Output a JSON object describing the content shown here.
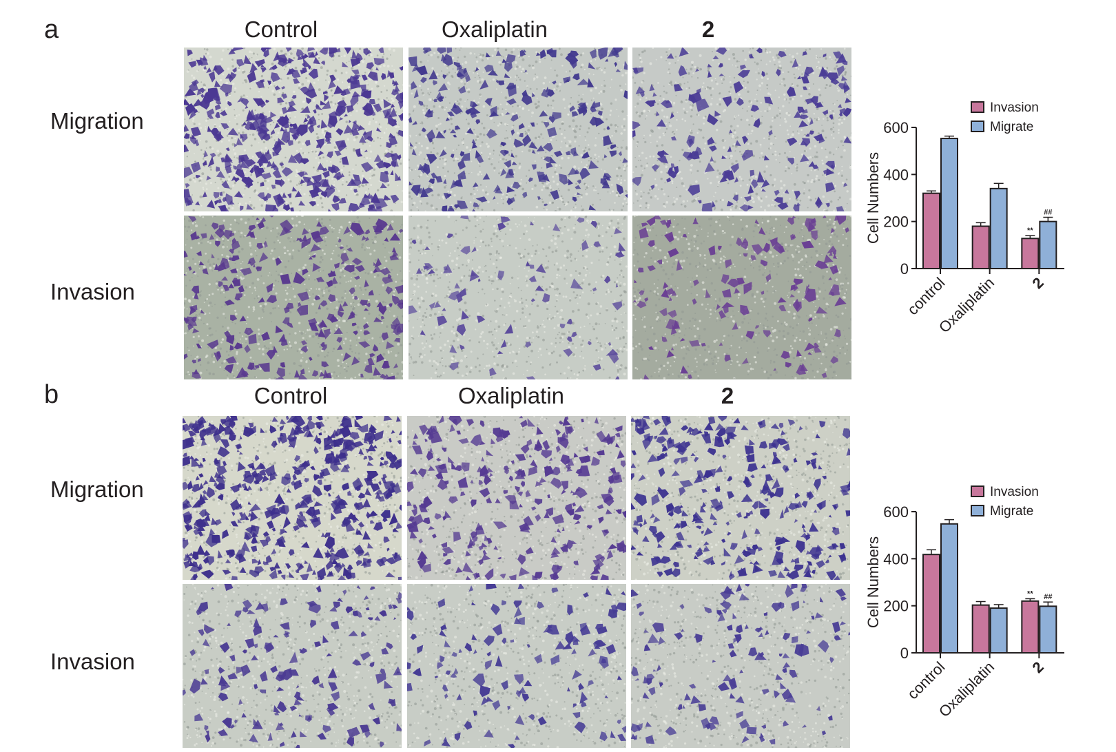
{
  "panels": [
    {
      "letter": "a",
      "columns": [
        "Control",
        "Oxaliplatin",
        "2"
      ],
      "rows": [
        "Migration",
        "Invasion"
      ],
      "micrographs": [
        {
          "density": 0.85,
          "bg": "#d4d8cf",
          "cell": "#4b3893"
        },
        {
          "density": 0.45,
          "bg": "#c5cac6",
          "cell": "#433a8f"
        },
        {
          "density": 0.32,
          "bg": "#c6cac7",
          "cell": "#4a3c96"
        },
        {
          "density": 0.48,
          "bg": "#a9b2a4",
          "cell": "#5a3a8f"
        },
        {
          "density": 0.14,
          "bg": "#c7cdc6",
          "cell": "#5b4a9c"
        },
        {
          "density": 0.26,
          "bg": "#a4ab9f",
          "cell": "#6a3f94"
        }
      ],
      "chart_data": {
        "type": "bar",
        "categories": [
          "control",
          "Oxaliplatin",
          "2"
        ],
        "series": [
          {
            "name": "Invasion",
            "color": "#c8779c",
            "values": [
              320,
              180,
              128
            ],
            "errors": [
              10,
              15,
              12
            ]
          },
          {
            "name": "Migrate",
            "color": "#8fb0d8",
            "values": [
              553,
              340,
              200
            ],
            "errors": [
              10,
              22,
              18
            ]
          }
        ],
        "ylabel": "Cell Numbers",
        "yticks": [
          0,
          200,
          400,
          600
        ],
        "ylim": [
          0,
          600
        ],
        "annotations": [
          {
            "category": "2",
            "series": "Invasion",
            "text": "**"
          },
          {
            "category": "2",
            "series": "Migrate",
            "text": "##"
          }
        ],
        "legend": "top-right"
      }
    },
    {
      "letter": "b",
      "columns": [
        "Control",
        "Oxaliplatin",
        "2"
      ],
      "rows": [
        "Migration",
        "Invasion"
      ],
      "micrographs": [
        {
          "density": 0.9,
          "bg": "#d6d8cb",
          "cell": "#3d2f8c"
        },
        {
          "density": 0.5,
          "bg": "#c9cbc6",
          "cell": "#553a92"
        },
        {
          "density": 0.55,
          "bg": "#cdd0c6",
          "cell": "#3c3290"
        },
        {
          "density": 0.28,
          "bg": "#c8cdc5",
          "cell": "#4a3a93"
        },
        {
          "density": 0.22,
          "bg": "#c8cdc6",
          "cell": "#463c95"
        },
        {
          "density": 0.24,
          "bg": "#c8ccc6",
          "cell": "#4a3e96"
        }
      ],
      "chart_data": {
        "type": "bar",
        "categories": [
          "control",
          "Oxaliplatin",
          "2"
        ],
        "series": [
          {
            "name": "Invasion",
            "color": "#c8779c",
            "values": [
              418,
              203,
              220
            ],
            "errors": [
              20,
              15,
              10
            ]
          },
          {
            "name": "Migrate",
            "color": "#8fb0d8",
            "values": [
              548,
              190,
              198
            ],
            "errors": [
              18,
              15,
              18
            ]
          }
        ],
        "ylabel": "Cell Numbers",
        "yticks": [
          0,
          200,
          400,
          600
        ],
        "ylim": [
          0,
          600
        ],
        "annotations": [
          {
            "category": "2",
            "series": "Invasion",
            "text": "**"
          },
          {
            "category": "2",
            "series": "Migrate",
            "text": "##"
          }
        ],
        "legend": "top-right"
      }
    }
  ]
}
